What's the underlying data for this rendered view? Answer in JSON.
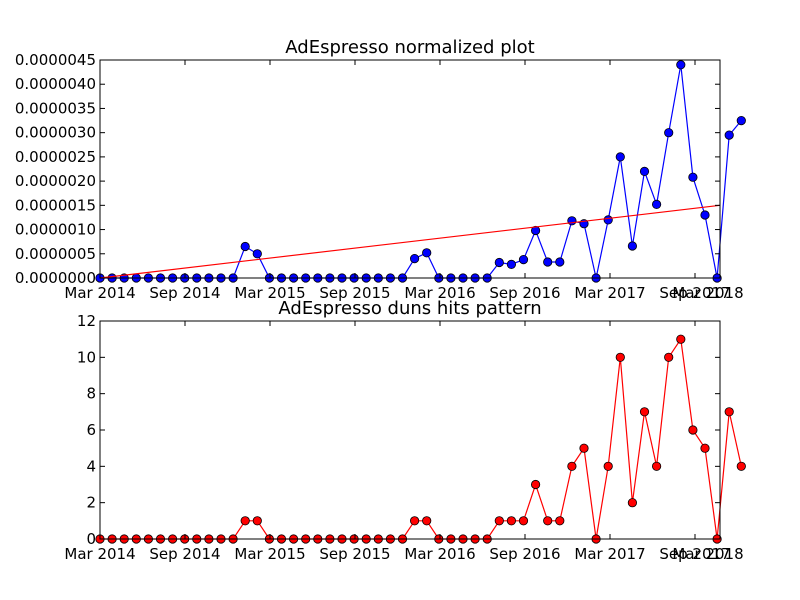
{
  "chart_data": [
    {
      "type": "line",
      "title": "AdEspresso normalized plot",
      "xlabel": "",
      "ylabel": "",
      "x_tick_labels": [
        "Mar 2014",
        "Sep 2014",
        "Mar 2015",
        "Sep 2015",
        "Mar 2016",
        "Sep 2016",
        "Mar 2017",
        "Sep 2017",
        "Mar 2018"
      ],
      "y_tick_labels": [
        "0.0000000",
        "0.0000005",
        "0.0000010",
        "0.0000015",
        "0.0000020",
        "0.0000025",
        "0.0000030",
        "0.0000035",
        "0.0000040",
        "0.0000045"
      ],
      "ylim": [
        0,
        4.5e-06
      ],
      "grid": false,
      "series": [
        {
          "color": "#0000ff",
          "marker_color": "#0000ff",
          "values": [
            0,
            0,
            0,
            0,
            0,
            0,
            0,
            0,
            0,
            0,
            0,
            0,
            6.5e-07,
            5e-07,
            0,
            0,
            0,
            0,
            0,
            0,
            0,
            0,
            0,
            0,
            0,
            0,
            4e-07,
            5.2e-07,
            0,
            0,
            0,
            0,
            0,
            3.2e-07,
            2.8e-07,
            3.8e-07,
            9.8e-07,
            3.3e-07,
            3.3e-07,
            1.18e-06,
            1.12e-06,
            0,
            1.2e-06,
            2.5e-06,
            6.6e-07,
            2.2e-06,
            1.52e-06,
            3e-06,
            4.4e-06,
            2.08e-06,
            1.3e-06,
            0,
            2.95e-06,
            3.25e-06
          ]
        },
        {
          "color": "#ff0000",
          "marker": "none",
          "trend": true,
          "values": [
            0,
            1.5e-06
          ]
        }
      ]
    },
    {
      "type": "line",
      "title": "AdEspresso duns hits pattern",
      "xlabel": "",
      "ylabel": "",
      "x_tick_labels": [
        "Mar 2014",
        "Sep 2014",
        "Mar 2015",
        "Sep 2015",
        "Mar 2016",
        "Sep 2016",
        "Mar 2017",
        "Sep 2017",
        "Mar 2018"
      ],
      "y_tick_labels": [
        "0",
        "2",
        "4",
        "6",
        "8",
        "10",
        "12"
      ],
      "ylim": [
        0,
        12
      ],
      "grid": false,
      "series": [
        {
          "color": "#ff0000",
          "marker_color": "#ff0000",
          "values": [
            0,
            0,
            0,
            0,
            0,
            0,
            0,
            0,
            0,
            0,
            0,
            0,
            1,
            1,
            0,
            0,
            0,
            0,
            0,
            0,
            0,
            0,
            0,
            0,
            0,
            0,
            1,
            1,
            0,
            0,
            0,
            0,
            0,
            1,
            1,
            1,
            3,
            1,
            1,
            4,
            5,
            0,
            4,
            10,
            2,
            7,
            4,
            10,
            11,
            6,
            5,
            0,
            7,
            4
          ]
        }
      ]
    }
  ]
}
